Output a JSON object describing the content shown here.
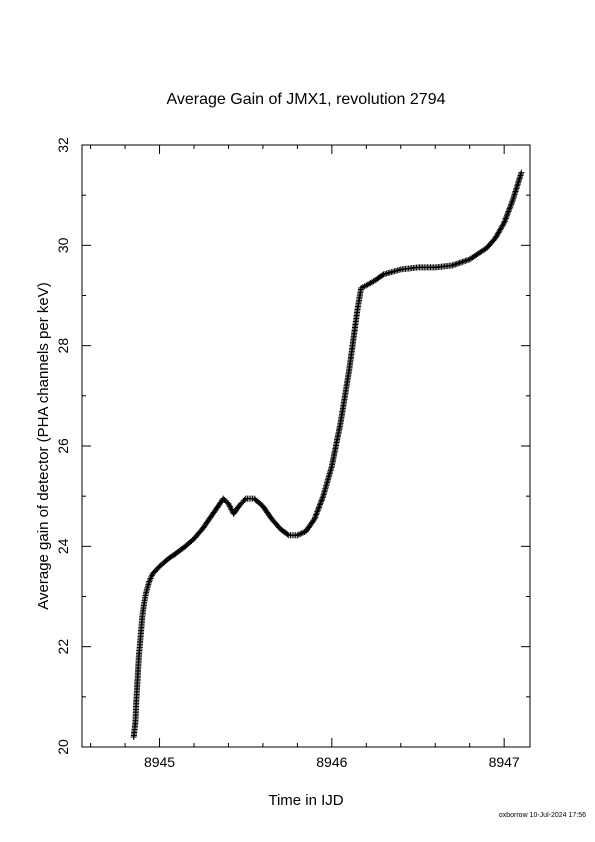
{
  "chart_data": {
    "type": "scatter",
    "title": "Average Gain of JMX1, revolution 2794",
    "xlabel": "Time in IJD",
    "ylabel": "Average gain of detector (PHA channels per keV)",
    "xlim": [
      8944.55,
      8947.15
    ],
    "ylim": [
      20,
      32
    ],
    "xticks": [
      8945,
      8946,
      8947
    ],
    "xtick_labels": [
      "8945",
      "8946",
      "8947"
    ],
    "yticks": [
      20,
      22,
      24,
      26,
      28,
      30,
      32
    ],
    "ytick_labels": [
      "20",
      "22",
      "24",
      "26",
      "28",
      "30",
      "32"
    ],
    "marker": "+",
    "grid": false,
    "series": [
      {
        "points": [
          [
            8944.85,
            20.2
          ],
          [
            8944.86,
            20.5
          ],
          [
            8944.865,
            20.9
          ],
          [
            8944.87,
            21.2
          ],
          [
            8944.875,
            21.5
          ],
          [
            8944.88,
            21.8
          ],
          [
            8944.89,
            22.2
          ],
          [
            8944.9,
            22.6
          ],
          [
            8944.91,
            22.85
          ],
          [
            8944.92,
            23.05
          ],
          [
            8944.94,
            23.3
          ],
          [
            8944.96,
            23.45
          ],
          [
            8945.0,
            23.6
          ],
          [
            8945.05,
            23.75
          ],
          [
            8945.1,
            23.87
          ],
          [
            8945.15,
            24.0
          ],
          [
            8945.2,
            24.15
          ],
          [
            8945.25,
            24.35
          ],
          [
            8945.3,
            24.6
          ],
          [
            8945.35,
            24.85
          ],
          [
            8945.37,
            24.95
          ],
          [
            8945.4,
            24.85
          ],
          [
            8945.43,
            24.65
          ],
          [
            8945.46,
            24.8
          ],
          [
            8945.5,
            24.95
          ],
          [
            8945.55,
            24.95
          ],
          [
            8945.6,
            24.8
          ],
          [
            8945.65,
            24.55
          ],
          [
            8945.7,
            24.35
          ],
          [
            8945.75,
            24.22
          ],
          [
            8945.8,
            24.22
          ],
          [
            8945.85,
            24.3
          ],
          [
            8945.9,
            24.55
          ],
          [
            8945.95,
            25.0
          ],
          [
            8946.0,
            25.6
          ],
          [
            8946.05,
            26.45
          ],
          [
            8946.1,
            27.5
          ],
          [
            8946.15,
            28.75
          ],
          [
            8946.17,
            29.15
          ],
          [
            8946.2,
            29.2
          ],
          [
            8946.25,
            29.3
          ],
          [
            8946.3,
            29.42
          ],
          [
            8946.4,
            29.52
          ],
          [
            8946.5,
            29.56
          ],
          [
            8946.6,
            29.56
          ],
          [
            8946.7,
            29.6
          ],
          [
            8946.8,
            29.72
          ],
          [
            8946.9,
            29.95
          ],
          [
            8946.95,
            30.15
          ],
          [
            8947.0,
            30.45
          ],
          [
            8947.05,
            30.9
          ],
          [
            8947.1,
            31.45
          ]
        ]
      }
    ]
  },
  "footer": "oxborrow 10-Jul-2024 17:56"
}
